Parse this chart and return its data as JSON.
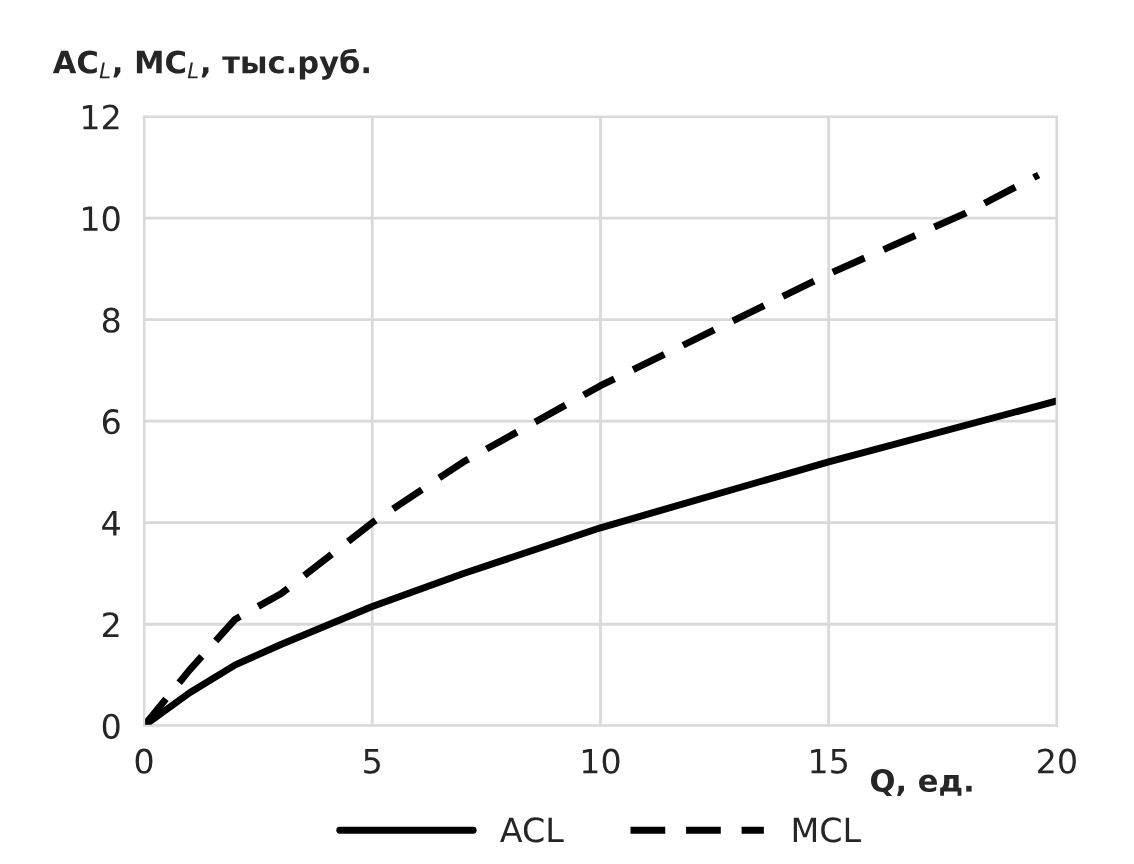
{
  "chart_data": {
    "type": "line",
    "ylabel": "AC$_{L}$, MC$_{L}$, тыс.руб.",
    "xlabel": "Q, ед.",
    "xlim": [
      0,
      20
    ],
    "xticks": [
      0,
      5,
      10,
      15,
      20
    ],
    "ylim": [
      0,
      12
    ],
    "yticks": [
      0,
      2,
      4,
      6,
      8,
      10,
      12
    ],
    "grid": true,
    "legend": "bottom",
    "series": [
      {
        "name": "ACL",
        "color": "#000000",
        "line_style": "solid",
        "x": [
          0,
          1,
          2,
          3,
          5,
          7,
          10,
          15,
          20
        ],
        "values": [
          0,
          0.65,
          1.2,
          1.6,
          2.35,
          3.0,
          3.9,
          5.2,
          6.4
        ]
      },
      {
        "name": "MCL",
        "color": "#000000",
        "line_style": "dashed",
        "x": [
          0,
          1,
          2,
          3,
          5,
          7,
          10,
          15,
          18,
          19.6
        ],
        "values": [
          0,
          1.1,
          2.1,
          2.6,
          4.0,
          5.2,
          6.7,
          8.9,
          10.1,
          10.85
        ]
      }
    ]
  }
}
